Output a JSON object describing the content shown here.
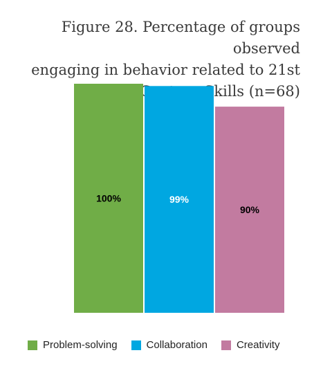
{
  "chart_data": {
    "type": "bar",
    "title_lines": [
      "Figure 28. Percentage of groups observed",
      "engaging in behavior related to 21st",
      "Century Skills (n=68)"
    ],
    "categories": [
      "Problem-solving",
      "Collaboration",
      "Creativity"
    ],
    "values": [
      100,
      99,
      90
    ],
    "data_labels": [
      "100%",
      "99%",
      "90%"
    ],
    "colors": [
      "#70ad47",
      "#00a7e1",
      "#c27ba0"
    ],
    "label_colors": [
      "#000000",
      "#ffffff",
      "#000000"
    ],
    "ylim": [
      0,
      100
    ],
    "grid": false,
    "legend_position": "bottom"
  }
}
